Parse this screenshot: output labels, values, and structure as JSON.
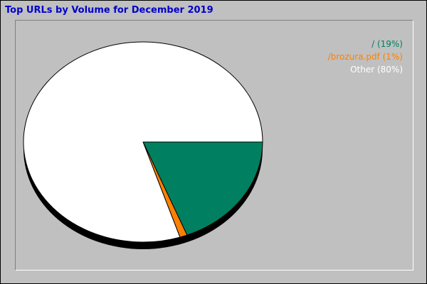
{
  "chart_data": {
    "type": "pie",
    "title": "Top URLs by Volume for December 2019",
    "slices": [
      {
        "label": "/",
        "value": 19,
        "legend": "/ (19%)",
        "color": "#008060"
      },
      {
        "label": "/brozura.pdf",
        "value": 1,
        "legend": "/brozura.pdf (1%)",
        "color": "#ff8000"
      },
      {
        "label": "Other",
        "value": 80,
        "legend": "Other (80%)",
        "color": "#ffffff"
      }
    ],
    "legend_position": "top-right",
    "background": "#c0c0c0",
    "title_color": "#0000cc"
  }
}
